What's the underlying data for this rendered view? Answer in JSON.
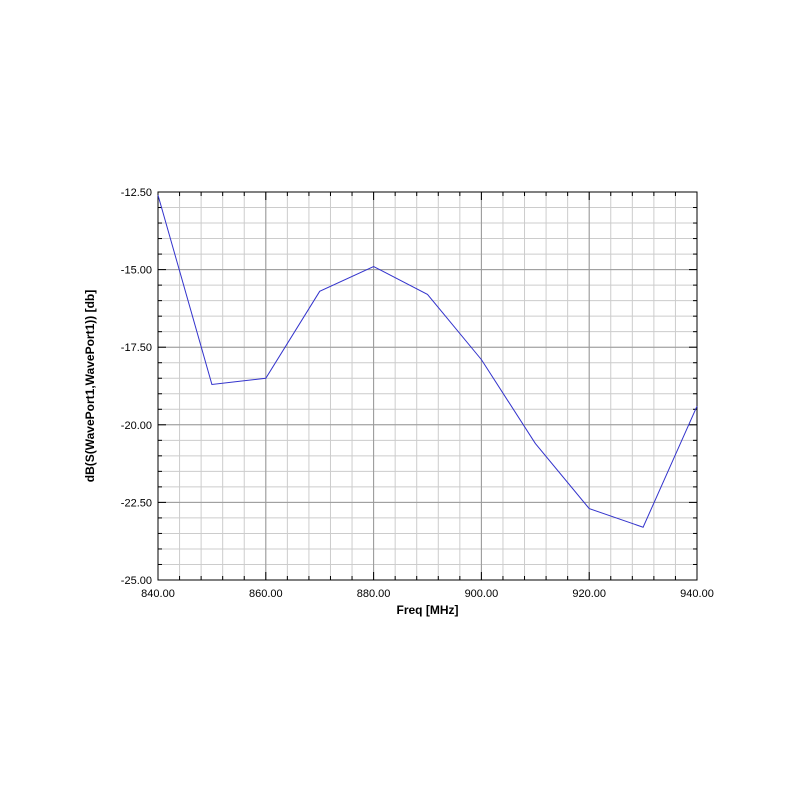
{
  "chart_data": {
    "type": "line",
    "title": "",
    "xlabel": "Freq [MHz]",
    "ylabel": "dB(S(WavePort1,WavePort1)) [db]",
    "xlim": [
      840,
      940
    ],
    "ylim": [
      -25,
      -12.5
    ],
    "x_ticks": [
      "840.00",
      "860.00",
      "880.00",
      "900.00",
      "920.00",
      "940.00"
    ],
    "y_ticks": [
      "-12.50",
      "-15.00",
      "-17.50",
      "-20.00",
      "-22.50",
      "-25.00"
    ],
    "x_tick_values": [
      840,
      860,
      880,
      900,
      920,
      940
    ],
    "y_tick_values": [
      -12.5,
      -15,
      -17.5,
      -20,
      -22.5,
      -25
    ],
    "grid": true,
    "legend": "none",
    "series": [
      {
        "color": "#3333cc",
        "x": [
          840,
          850,
          860,
          870,
          880,
          890,
          900,
          910,
          920,
          930,
          940
        ],
        "y": [
          -12.6,
          -18.7,
          -18.5,
          -15.7,
          -14.9,
          -15.8,
          -17.9,
          -20.6,
          -22.7,
          -23.3,
          -19.4
        ]
      }
    ]
  }
}
